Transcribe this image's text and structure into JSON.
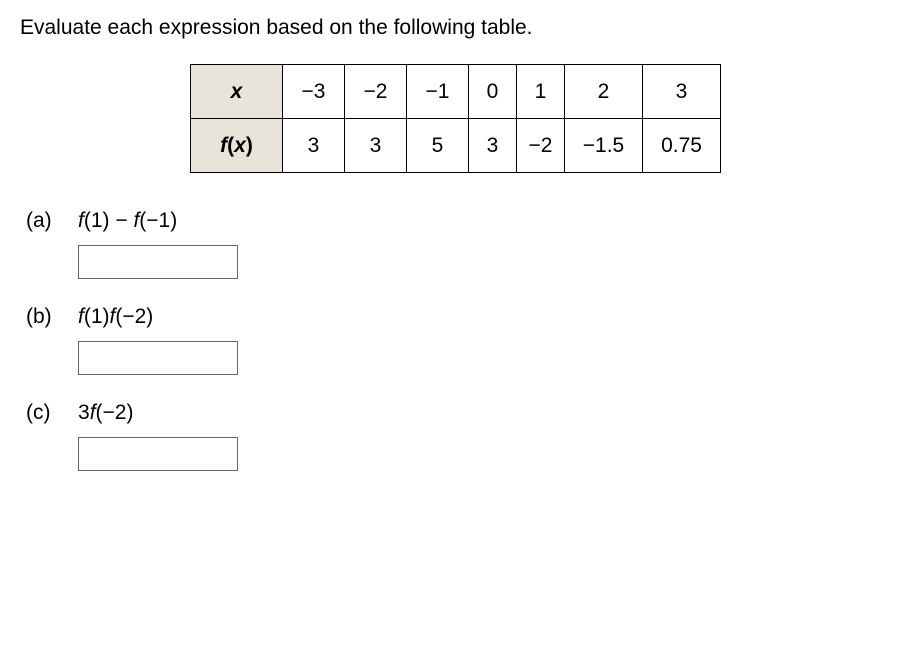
{
  "instruction": "Evaluate each expression based on the following table.",
  "table": {
    "row_x_label_html": "x",
    "row_fx_label_f": "f",
    "row_fx_label_open": "(",
    "row_fx_label_x": "x",
    "row_fx_label_close": ")",
    "x": {
      "c0": "−3",
      "c1": "−2",
      "c2": "−1",
      "c3": "0",
      "c4": "1",
      "c5": "2",
      "c6": "3"
    },
    "fx": {
      "c0": "3",
      "c1": "3",
      "c2": "5",
      "c3": "3",
      "c4": "−2",
      "c5": "−1.5",
      "c6": "0.75"
    }
  },
  "problems": {
    "a": {
      "label": "(a)",
      "expr_plain": "f(1) − f(−1)"
    },
    "b": {
      "label": "(b)",
      "expr_plain": "f(1)f(−2)"
    },
    "c": {
      "label": "(c)",
      "expr_plain": "3f(−2)"
    }
  },
  "colors": {
    "header_bg": "#e8e4d9",
    "border": "#000000",
    "text": "#000000",
    "input_border": "#666666"
  }
}
